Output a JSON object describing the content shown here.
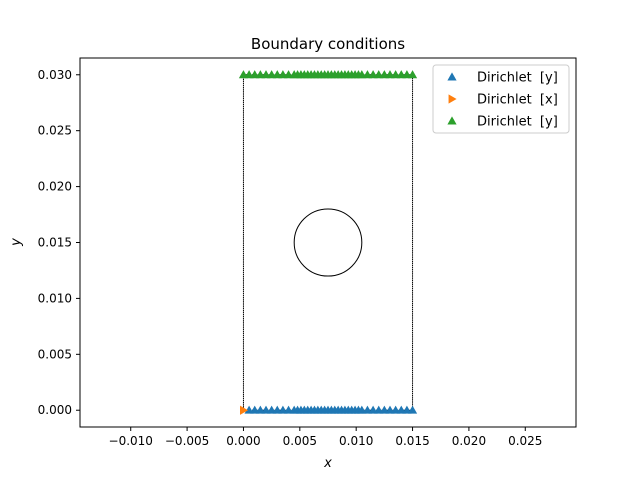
{
  "chart_data": {
    "type": "scatter",
    "title": "Boundary conditions",
    "xlabel": "x",
    "ylabel": "y",
    "xlim": [
      -0.0145,
      0.0295
    ],
    "ylim": [
      -0.0015,
      0.0315
    ],
    "x_ticks": [
      -0.01,
      -0.005,
      0.0,
      0.005,
      0.01,
      0.015,
      0.02,
      0.025
    ],
    "x_tick_labels": [
      "−0.010",
      "−0.005",
      "0.000",
      "0.005",
      "0.010",
      "0.015",
      "0.020",
      "0.025"
    ],
    "y_ticks": [
      0.0,
      0.005,
      0.01,
      0.015,
      0.02,
      0.025,
      0.03
    ],
    "y_tick_labels": [
      "0.000",
      "0.005",
      "0.010",
      "0.015",
      "0.020",
      "0.025",
      "0.030"
    ],
    "grid": false,
    "legend_position": "upper-right",
    "geometry": {
      "rectangle": {
        "x0": 0.0,
        "x1": 0.015,
        "y0": 0.0,
        "y1": 0.03
      },
      "hole": {
        "cx": 0.0075,
        "cy": 0.015,
        "r": 0.003
      },
      "color": "#000000"
    },
    "series": [
      {
        "name": "Dirichlet  [y]",
        "marker": "triangle-up",
        "color": "#1f77b4",
        "x": [
          0.0005,
          0.001,
          0.0015,
          0.002,
          0.0025,
          0.003,
          0.0035,
          0.004,
          0.0045,
          0.0048,
          0.0051,
          0.0054,
          0.0057,
          0.006,
          0.0063,
          0.0066,
          0.0069,
          0.0072,
          0.0075,
          0.0078,
          0.0081,
          0.0084,
          0.0087,
          0.009,
          0.0093,
          0.0096,
          0.0099,
          0.0102,
          0.0105,
          0.011,
          0.0115,
          0.012,
          0.0125,
          0.013,
          0.0135,
          0.014,
          0.0145,
          0.015
        ],
        "y_constant": 0.0
      },
      {
        "name": "Dirichlet  [x]",
        "marker": "triangle-right",
        "color": "#ff7f0e",
        "x": [
          0.0
        ],
        "y": [
          0.0
        ]
      },
      {
        "name": "Dirichlet  [y]",
        "marker": "triangle-up",
        "color": "#2ca02c",
        "x": [
          0.0,
          0.0005,
          0.001,
          0.0015,
          0.002,
          0.0025,
          0.003,
          0.0035,
          0.004,
          0.0045,
          0.0048,
          0.0051,
          0.0054,
          0.0057,
          0.006,
          0.0063,
          0.0066,
          0.0069,
          0.0072,
          0.0075,
          0.0078,
          0.0081,
          0.0084,
          0.0087,
          0.009,
          0.0093,
          0.0096,
          0.0099,
          0.0102,
          0.0105,
          0.011,
          0.0115,
          0.012,
          0.0125,
          0.013,
          0.0135,
          0.014,
          0.0145,
          0.015
        ],
        "y_constant": 0.03
      }
    ]
  }
}
